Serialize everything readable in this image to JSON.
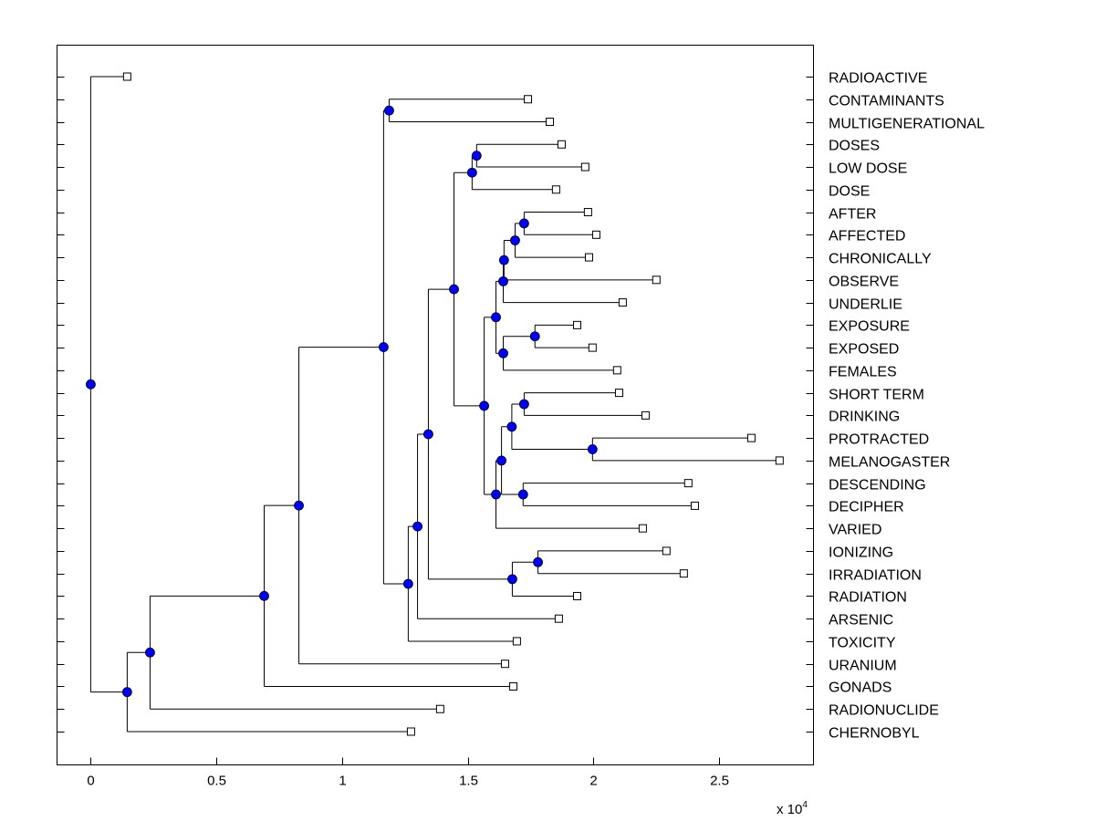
{
  "chart_data": {
    "type": "dendrogram",
    "title": "",
    "xlabel": "",
    "ylabel": "",
    "x_scale_label": "x 10",
    "x_scale_exponent": "4",
    "xlim": [
      -0.134,
      2.875
    ],
    "xticks": [
      "0",
      "0.5",
      "1",
      "1.5",
      "2",
      "2.5"
    ],
    "xtick_values": [
      0,
      0.5,
      1,
      1.5,
      2,
      2.5
    ],
    "leaf_marker_color": "#ffffff",
    "node_marker_color": "#0000ff",
    "line_color": "#000000",
    "leaves": [
      "RADIOACTIVE",
      "CONTAMINANTS",
      "MULTIGENERATIONAL",
      "DOSES",
      "LOW DOSE",
      "DOSE",
      "AFTER",
      "AFFECTED",
      "CHRONICALLY",
      "OBSERVE",
      "UNDERLIE",
      "EXPOSURE",
      "EXPOSED",
      "FEMALES",
      "SHORT TERM",
      "DRINKING",
      "PROTRACTED",
      "MELANOGASTER",
      "DESCENDING",
      "DECIPHER",
      "VARIED",
      "IONIZING",
      "IRRADIATION",
      "RADIATION",
      "ARSENIC",
      "TOXICITY",
      "URANIUM",
      "GONADS",
      "RADIONUCLIDE",
      "CHERNOBYL"
    ],
    "tree": {
      "h": 0,
      "c": [
        {
          "leaf": 0,
          "h": 0.145
        },
        {
          "h": 0.145,
          "c": [
            {
              "h": 0.236,
              "c": [
                {
                  "h": 0.69,
                  "c": [
                    {
                      "h": 0.828,
                      "c": [
                        {
                          "h": 1.165,
                          "c": [
                            {
                              "h": 1.187,
                              "c": [
                                {
                                  "leaf": 1,
                                  "h": 1.739
                                },
                                {
                                  "leaf": 2,
                                  "h": 1.826
                                }
                              ]
                            },
                            {
                              "h": 1.263,
                              "c": [
                                {
                                  "h": 1.3,
                                  "c": [
                                    {
                                      "h": 1.343,
                                      "c": [
                                        {
                                          "h": 1.445,
                                          "c": [
                                            {
                                              "h": 1.517,
                                              "c": [
                                                {
                                                  "h": 1.535,
                                                  "c": [
                                                    {
                                                      "leaf": 3,
                                                      "h": 1.873
                                                    },
                                                    {
                                                      "leaf": 4,
                                                      "h": 1.967
                                                    }
                                                  ]
                                                },
                                                {
                                                  "leaf": 5,
                                                  "h": 1.851
                                                }
                                              ]
                                            },
                                            {
                                              "h": 1.565,
                                              "c": [
                                                {
                                                  "h": 1.612,
                                                  "c": [
                                                    {
                                                      "h": 1.641,
                                                      "c": [
                                                        {
                                                          "h": 1.644,
                                                          "c": [
                                                            {
                                                              "h": 1.688,
                                                              "c": [
                                                                {
                                                                  "h": 1.724,
                                                                  "c": [
                                                                    {
                                                                      "leaf": 6,
                                                                      "h": 1.978
                                                                    },
                                                                    {
                                                                      "leaf": 7,
                                                                      "h": 2.011
                                                                    }
                                                                  ]
                                                                },
                                                                {
                                                                  "leaf": 8,
                                                                  "h": 1.982
                                                                }
                                                              ]
                                                            },
                                                            {
                                                              "leaf": 9,
                                                              "h": 2.25
                                                            }
                                                          ]
                                                        },
                                                        {
                                                          "leaf": 10,
                                                          "h": 2.116
                                                        }
                                                      ]
                                                    },
                                                    {
                                                      "h": 1.641,
                                                      "c": [
                                                        {
                                                          "h": 1.767,
                                                          "c": [
                                                            {
                                                              "leaf": 11,
                                                              "h": 1.935
                                                            },
                                                            {
                                                              "leaf": 12,
                                                              "h": 1.996
                                                            }
                                                          ]
                                                        },
                                                        {
                                                          "leaf": 13,
                                                          "h": 2.094
                                                        }
                                                      ]
                                                    }
                                                  ]
                                                },
                                                {
                                                  "h": 1.612,
                                                  "c": [
                                                    {
                                                      "h": 1.634,
                                                      "c": [
                                                        {
                                                          "h": 1.675,
                                                          "c": [
                                                            {
                                                              "h": 1.724,
                                                              "c": [
                                                                {
                                                                  "leaf": 14,
                                                                  "h": 2.102
                                                                },
                                                                {
                                                                  "leaf": 15,
                                                                  "h": 2.207
                                                                }
                                                              ]
                                                            },
                                                            {
                                                              "h": 1.996,
                                                              "c": [
                                                                {
                                                                  "leaf": 16,
                                                                  "h": 2.628
                                                                },
                                                                {
                                                                  "leaf": 17,
                                                                  "h": 2.74
                                                                }
                                                              ]
                                                            }
                                                          ]
                                                        },
                                                        {
                                                          "h": 1.72,
                                                          "c": [
                                                            {
                                                              "leaf": 18,
                                                              "h": 2.377
                                                            },
                                                            {
                                                              "leaf": 19,
                                                              "h": 2.403
                                                            }
                                                          ]
                                                        }
                                                      ]
                                                    },
                                                    {
                                                      "leaf": 20,
                                                      "h": 2.196
                                                    }
                                                  ]
                                                }
                                              ]
                                            }
                                          ]
                                        },
                                        {
                                          "h": 1.677,
                                          "c": [
                                            {
                                              "h": 1.779,
                                              "c": [
                                                {
                                                  "leaf": 21,
                                                  "h": 2.29
                                                },
                                                {
                                                  "leaf": 22,
                                                  "h": 2.359
                                                }
                                              ]
                                            },
                                            {
                                              "leaf": 23,
                                              "h": 1.935
                                            }
                                          ]
                                        }
                                      ]
                                    },
                                    {
                                      "leaf": 24,
                                      "h": 1.862
                                    }
                                  ]
                                },
                                {
                                  "leaf": 25,
                                  "h": 1.695
                                }
                              ]
                            }
                          ]
                        },
                        {
                          "leaf": 26,
                          "h": 1.648
                        }
                      ]
                    },
                    {
                      "leaf": 27,
                      "h": 1.681
                    }
                  ]
                },
                {
                  "leaf": 28,
                  "h": 1.39
                }
              ]
            },
            {
              "leaf": 29,
              "h": 1.274
            }
          ]
        }
      ]
    }
  }
}
